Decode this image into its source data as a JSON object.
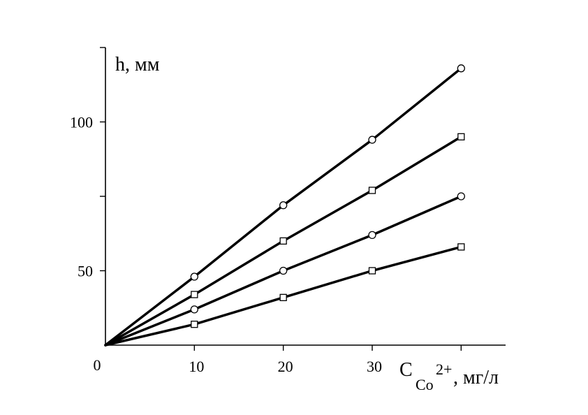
{
  "chart_data": {
    "type": "line",
    "x": [
      0,
      10,
      20,
      30,
      40
    ],
    "series": [
      {
        "marker": "circle",
        "values": [
          25,
          48,
          72,
          94,
          118
        ]
      },
      {
        "marker": "square",
        "values": [
          25,
          42,
          60,
          77,
          95
        ]
      },
      {
        "marker": "circle",
        "values": [
          25,
          37,
          50,
          62,
          75
        ]
      },
      {
        "marker": "square",
        "values": [
          25,
          32,
          41,
          50,
          58
        ]
      }
    ],
    "xlim": [
      0,
      45
    ],
    "ylim": [
      25,
      125
    ],
    "x_ticks": [
      {
        "value": 10,
        "label": "10"
      },
      {
        "value": 20,
        "label": "20"
      },
      {
        "value": 30,
        "label": "30"
      }
    ],
    "x_minor_ticks": [
      40
    ],
    "y_ticks": [
      {
        "value": 50,
        "label": "50"
      },
      {
        "value": 100,
        "label": "100"
      }
    ],
    "y_minor_ticks": [
      75,
      125
    ],
    "origin_label": "0",
    "ylabel": "h, мм",
    "xlabel": {
      "main": "C",
      "subscript": "Co",
      "superscript": "2+",
      "suffix": ", мг/л"
    },
    "grid": false,
    "line_color": "#000000"
  }
}
